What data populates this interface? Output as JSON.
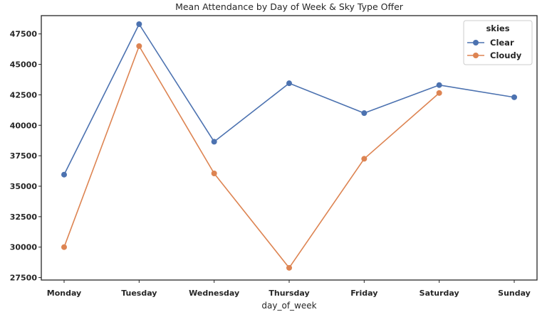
{
  "chart_data": {
    "type": "line",
    "title": "Mean Attendance by Day of Week & Sky Type Offer",
    "xlabel": "day_of_week",
    "ylabel": "",
    "categories": [
      "Monday",
      "Tuesday",
      "Wednesday",
      "Thursday",
      "Friday",
      "Saturday",
      "Sunday"
    ],
    "yticks": [
      27500,
      30000,
      32500,
      35000,
      37500,
      40000,
      42500,
      45000,
      47500
    ],
    "ytick_labels": [
      "27500",
      "30000",
      "32500",
      "35000",
      "37500",
      "40000",
      "42500",
      "45000",
      "47500"
    ],
    "ylim": [
      27300,
      49000
    ],
    "grid": false,
    "legend": {
      "title": "skies",
      "placement": "top-right"
    },
    "series": [
      {
        "name": "Clear",
        "color": "#4c72b0",
        "values": [
          35950,
          48300,
          38650,
          43450,
          41000,
          43300,
          42300
        ]
      },
      {
        "name": "Cloudy",
        "color": "#dd8452",
        "values": [
          30000,
          46500,
          36050,
          28300,
          37250,
          42650,
          null
        ]
      }
    ]
  }
}
